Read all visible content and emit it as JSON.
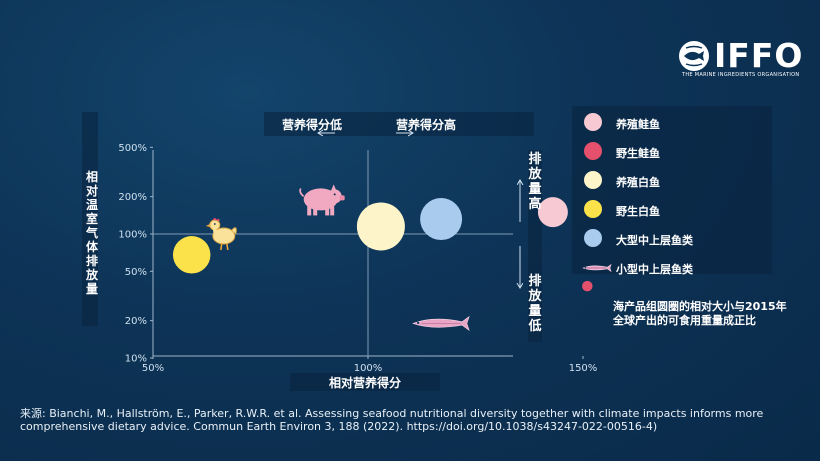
{
  "brand": {
    "name": "IFFO",
    "tagline": "THE MARINE INGREDIENTS ORGANISATION"
  },
  "annotations": {
    "nutrition_low": "营养得分低",
    "nutrition_high": "营养得分高",
    "emission_high": "排放量高",
    "emission_low": "排放量低"
  },
  "note": "海产品组圆圈的相对大小与2015年全球产出的可食用重量成正比",
  "source": "来源: Bianchi, M., Hallström, E., Parker, R.W.R. et al. Assessing seafood nutritional diversity together with climate impacts informs more comprehensive dietary advice. Commun Earth Environ 3, 188 (2022). https://doi.org/10.1038/s43247-022-00516-4)",
  "colors": {
    "background": "#0d3356",
    "farmed_salmon": "#f6c9d3",
    "wild_salmon": "#e5506c",
    "farmed_whitefish": "#fdf4c9",
    "wild_whitefish": "#fbe24a",
    "large_pelagic": "#a9cbee",
    "small_pelagic": "#e8a5c6",
    "pig": "#f0a9c0",
    "chicken": "#fbe29a"
  },
  "icons": {
    "pig": "pig-icon",
    "chicken": "chicken-icon",
    "fish": "fish-icon",
    "logo": "globe-fish-icon"
  },
  "chart_data": {
    "type": "scatter",
    "xlabel": "相对营养得分",
    "ylabel": "相对温室气体排放量",
    "x_scale": "linear",
    "y_scale": "log",
    "xlim": [
      50,
      155
    ],
    "ylim": [
      10,
      600
    ],
    "x_ticks": [
      "50%",
      "100%",
      "150%"
    ],
    "y_ticks": [
      "10%",
      "20%",
      "50%",
      "100%",
      "200%",
      "500%"
    ],
    "reference_lines": {
      "x": 100,
      "y": 100
    },
    "grid": false,
    "legend_position": "right",
    "series": [
      {
        "name": "养殖鲑鱼",
        "points": [
          {
            "x": 143,
            "y": 150,
            "size": 1.0
          }
        ]
      },
      {
        "name": "野生鲑鱼",
        "points": [
          {
            "x": 151,
            "y": 38,
            "size": 0.35
          }
        ]
      },
      {
        "name": "养殖白鱼",
        "points": [
          {
            "x": 103,
            "y": 115,
            "size": 1.6
          }
        ]
      },
      {
        "name": "野生白鱼",
        "points": [
          {
            "x": 59,
            "y": 68,
            "size": 1.25
          }
        ]
      },
      {
        "name": "大型中上层鱼类",
        "points": [
          {
            "x": 117,
            "y": 132,
            "size": 1.4
          }
        ]
      },
      {
        "name": "小型中上层鱼类",
        "points": [
          {
            "x": 117,
            "y": 19,
            "size": 0
          }
        ]
      }
    ],
    "icons": [
      {
        "icon": "pig",
        "x": 89,
        "y": 190
      },
      {
        "icon": "chicken",
        "x": 66,
        "y": 100
      }
    ]
  }
}
